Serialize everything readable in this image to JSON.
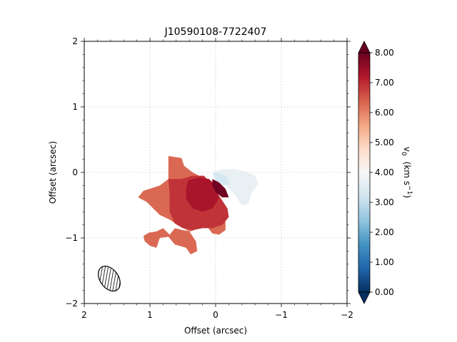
{
  "chart_data": {
    "type": "heatmap",
    "title": "J10590108-7722407",
    "xlabel": "Offset (arcsec)",
    "ylabel": "Offset (arcsec)",
    "xlim": [
      2,
      -2
    ],
    "ylim": [
      -2,
      2
    ],
    "x_ticks": [
      2,
      1,
      0,
      -1,
      -2
    ],
    "x_tick_labels": [
      "2",
      "1",
      "0",
      "−1",
      "−2"
    ],
    "y_ticks": [
      -2,
      -1,
      0,
      1,
      2
    ],
    "y_tick_labels": [
      "−2",
      "−1",
      "0",
      "1",
      "2"
    ],
    "grid": true,
    "colorbar": {
      "label_main": "v",
      "label_sub": "0",
      "label_units": "(km s",
      "label_exp": "−1",
      "label_close": ")",
      "vmin": 0.0,
      "vmax": 8.0,
      "ticks": [
        0,
        1,
        2,
        3,
        4,
        5,
        6,
        7,
        8
      ],
      "tick_labels": [
        "0.00",
        "1.00",
        "2.00",
        "3.00",
        "4.00",
        "5.00",
        "6.00",
        "7.00",
        "8.00"
      ],
      "colormap": "RdBu_r",
      "extend": "both"
    },
    "regions": [
      {
        "velocity": 6.3,
        "points": [
          [
            0.72,
            0.25
          ],
          [
            0.52,
            0.22
          ],
          [
            0.48,
            0.1
          ],
          [
            0.35,
            0.0
          ],
          [
            0.15,
            -0.1
          ],
          [
            0.05,
            -0.3
          ],
          [
            -0.05,
            -0.6
          ],
          [
            -0.15,
            -0.72
          ],
          [
            -0.15,
            -0.88
          ],
          [
            -0.05,
            -0.95
          ],
          [
            0.05,
            -0.93
          ],
          [
            0.15,
            -0.8
          ],
          [
            0.25,
            -0.85
          ],
          [
            0.38,
            -0.9
          ],
          [
            0.5,
            -0.88
          ],
          [
            0.62,
            -0.85
          ],
          [
            0.7,
            -0.95
          ],
          [
            0.8,
            -0.85
          ],
          [
            0.9,
            -0.9
          ],
          [
            1.02,
            -0.92
          ],
          [
            1.1,
            -0.97
          ],
          [
            1.08,
            -1.05
          ],
          [
            1.0,
            -1.12
          ],
          [
            0.9,
            -1.15
          ],
          [
            0.85,
            -1.0
          ],
          [
            0.72,
            -0.98
          ],
          [
            0.62,
            -1.1
          ],
          [
            0.45,
            -1.15
          ],
          [
            0.38,
            -1.25
          ],
          [
            0.28,
            -1.2
          ],
          [
            0.3,
            -1.05
          ],
          [
            0.4,
            -0.9
          ],
          [
            0.58,
            -0.8
          ],
          [
            0.7,
            -0.72
          ],
          [
            0.85,
            -0.65
          ],
          [
            0.95,
            -0.55
          ],
          [
            1.05,
            -0.45
          ],
          [
            1.18,
            -0.38
          ],
          [
            1.1,
            -0.28
          ],
          [
            1.0,
            -0.25
          ],
          [
            0.85,
            -0.2
          ],
          [
            0.72,
            -0.1
          ],
          [
            0.72,
            0.0
          ]
        ]
      },
      {
        "velocity": 6.9,
        "points": [
          [
            0.72,
            -0.1
          ],
          [
            0.52,
            -0.1
          ],
          [
            0.35,
            -0.05
          ],
          [
            0.18,
            -0.05
          ],
          [
            0.08,
            -0.15
          ],
          [
            -0.05,
            -0.35
          ],
          [
            -0.18,
            -0.55
          ],
          [
            -0.2,
            -0.68
          ],
          [
            -0.1,
            -0.8
          ],
          [
            0.05,
            -0.85
          ],
          [
            0.2,
            -0.85
          ],
          [
            0.35,
            -0.88
          ],
          [
            0.5,
            -0.85
          ],
          [
            0.62,
            -0.78
          ],
          [
            0.7,
            -0.6
          ],
          [
            0.7,
            -0.35
          ]
        ]
      },
      {
        "velocity": 7.3,
        "points": [
          [
            0.42,
            -0.12
          ],
          [
            0.25,
            -0.08
          ],
          [
            0.1,
            -0.1
          ],
          [
            0.0,
            -0.2
          ],
          [
            -0.05,
            -0.4
          ],
          [
            0.05,
            -0.55
          ],
          [
            0.2,
            -0.6
          ],
          [
            0.35,
            -0.55
          ],
          [
            0.45,
            -0.4
          ],
          [
            0.45,
            -0.25
          ]
        ]
      },
      {
        "velocity": 7.9,
        "points": [
          [
            0.05,
            -0.1
          ],
          [
            -0.05,
            -0.15
          ],
          [
            -0.15,
            -0.25
          ],
          [
            -0.2,
            -0.38
          ],
          [
            -0.1,
            -0.38
          ],
          [
            0.0,
            -0.3
          ],
          [
            0.05,
            -0.2
          ]
        ]
      },
      {
        "velocity": 3.7,
        "points": [
          [
            0.05,
            0.0
          ],
          [
            -0.1,
            0.05
          ],
          [
            -0.28,
            0.05
          ],
          [
            -0.45,
            0.02
          ],
          [
            -0.6,
            -0.05
          ],
          [
            -0.65,
            -0.18
          ],
          [
            -0.55,
            -0.3
          ],
          [
            -0.5,
            -0.48
          ],
          [
            -0.4,
            -0.5
          ],
          [
            -0.3,
            -0.35
          ],
          [
            -0.2,
            -0.25
          ],
          [
            -0.1,
            -0.12
          ],
          [
            0.0,
            -0.05
          ]
        ]
      },
      {
        "velocity": 3.3,
        "points": [
          [
            0.05,
            0.0
          ],
          [
            -0.08,
            -0.02
          ],
          [
            -0.18,
            -0.08
          ],
          [
            -0.22,
            -0.18
          ],
          [
            -0.12,
            -0.2
          ],
          [
            0.0,
            -0.12
          ]
        ]
      }
    ],
    "beam": {
      "center": [
        1.62,
        -1.62
      ],
      "major": 0.42,
      "minor": 0.28,
      "pa_deg": 35,
      "hatched": true
    }
  }
}
